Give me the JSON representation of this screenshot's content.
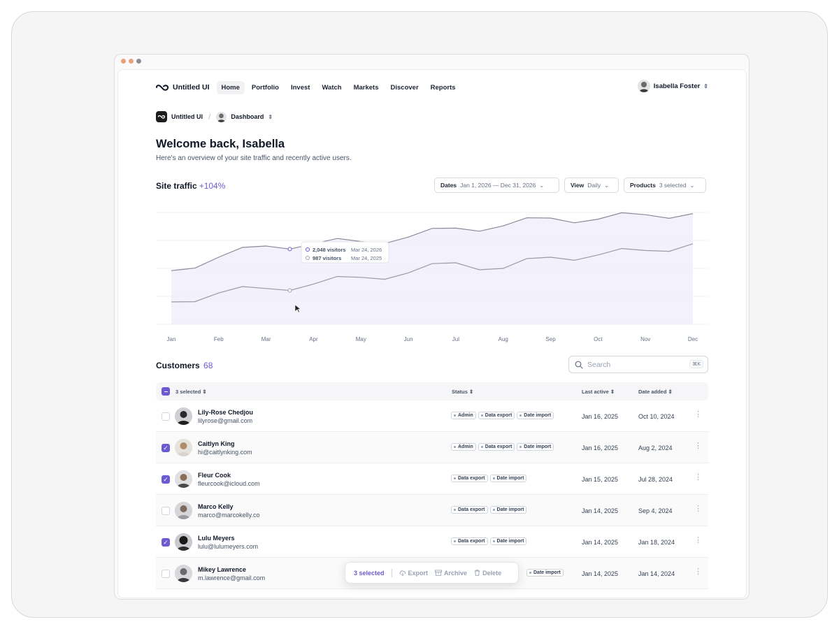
{
  "nav": {
    "brand": "Untitled UI",
    "items": [
      "Home",
      "Portfolio",
      "Invest",
      "Watch",
      "Markets",
      "Discover",
      "Reports"
    ],
    "user_name": "Isabella Foster"
  },
  "breadcrumb": {
    "org": "Untitled UI",
    "page": "Dashboard"
  },
  "header": {
    "title": "Welcome back, Isabella",
    "subtitle": "Here's an overview of your site traffic and recently active users."
  },
  "traffic": {
    "title": "Site traffic",
    "change": "+104%",
    "filters": {
      "dates_label": "Dates",
      "dates_value": "Jan 1, 2026 — Dec 31, 2026",
      "view_label": "View",
      "view_value": "Daily",
      "products_label": "Products",
      "products_value": "3 selected"
    },
    "tooltip": {
      "row1_value": "2,048 visitors",
      "row1_date": "Mar 24, 2026",
      "row2_value": "987 visitors",
      "row2_date": "Mar 24, 2025"
    }
  },
  "chart_data": {
    "type": "area",
    "categories": [
      "Jan",
      "Feb",
      "Mar",
      "Apr",
      "May",
      "Jun",
      "Jul",
      "Aug",
      "Sep",
      "Oct",
      "Nov",
      "Dec"
    ],
    "series": [
      {
        "name": "2026",
        "values": [
          0.48,
          0.6,
          0.7,
          0.72,
          0.74,
          0.78,
          0.86,
          0.88,
          0.95,
          0.94,
          0.98,
          0.99
        ]
      },
      {
        "name": "2025",
        "values": [
          0.2,
          0.28,
          0.32,
          0.36,
          0.42,
          0.46,
          0.55,
          0.5,
          0.6,
          0.62,
          0.66,
          0.72
        ]
      }
    ],
    "colors": {
      "line_2026": "#8a8a9a",
      "line_2025": "#9a9aaa",
      "fill": "#efedfb"
    }
  },
  "customers": {
    "title": "Customers",
    "count": "68",
    "search_placeholder": "Search",
    "search_shortcut": "⌘K",
    "columns": {
      "selected": "3 selected",
      "status": "Status",
      "last_active": "Last active",
      "date_added": "Date added"
    },
    "rows": [
      {
        "name": "Lily-Rose Chedjou",
        "email": "lilyrose@gmail.com",
        "badges": [
          "Admin",
          "Data export",
          "Date import"
        ],
        "last_active": "Jan 16, 2025",
        "date_added": "Oct 10, 2024"
      },
      {
        "name": "Caitlyn King",
        "email": "hi@caitlynking.com",
        "badges": [
          "Admin",
          "Data export",
          "Date import"
        ],
        "last_active": "Jan 16, 2025",
        "date_added": "Aug 2, 2024"
      },
      {
        "name": "Fleur Cook",
        "email": "fleurcook@icloud.com",
        "badges": [
          "Data export",
          "Date import"
        ],
        "last_active": "Jan 15, 2025",
        "date_added": "Jul 28, 2024"
      },
      {
        "name": "Marco Kelly",
        "email": "marco@marcokelly.co",
        "badges": [
          "Data export",
          "Date import"
        ],
        "last_active": "Jan 14, 2025",
        "date_added": "Sep 4, 2024"
      },
      {
        "name": "Lulu Meyers",
        "email": "lulu@lulumeyers.com",
        "badges": [
          "Data export",
          "Date import"
        ],
        "last_active": "Jan 14, 2025",
        "date_added": "Jan 18, 2024"
      },
      {
        "name": "Mikey Lawrence",
        "email": "m.lawrence@gmail.com",
        "badges": [
          "Date import"
        ],
        "last_active": "Jan 14, 2025",
        "date_added": "Jan 14, 2024"
      }
    ]
  },
  "bulk_toolbar": {
    "selected": "3 selected",
    "export": "Export",
    "archive": "Archive",
    "delete": "Delete"
  },
  "accent_color": "#6b5bd2"
}
